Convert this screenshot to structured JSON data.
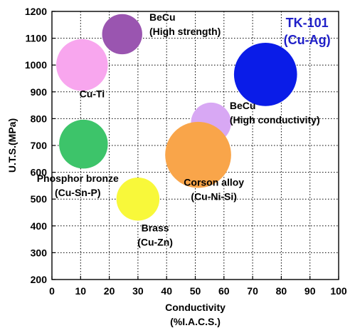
{
  "chart_data": {
    "type": "scatter",
    "style": "bubble",
    "xlabel_lines": [
      "Conductivity",
      "(%I.A.C.S.)"
    ],
    "ylabel": "U.T.S.(MPa)",
    "xlim": [
      0,
      100
    ],
    "ylim": [
      200,
      1200
    ],
    "xticks": [
      "0",
      "10",
      "20",
      "30",
      "40",
      "50",
      "60",
      "70",
      "80",
      "90",
      "100"
    ],
    "yticks": [
      "200",
      "300",
      "400",
      "500",
      "600",
      "700",
      "800",
      "900",
      "1000",
      "1100",
      "1200"
    ],
    "grid": true,
    "grid_style": "dotted",
    "headline_lines": [
      "TK-101",
      "(Cu-Ag)"
    ],
    "headline_color": "#1f1fc8",
    "bubbles": [
      {
        "label_lines": [
          "BeCu",
          "(High strength)"
        ],
        "x": 24.5,
        "y": 1115,
        "r": 7,
        "color": "#9a55b0"
      },
      {
        "label_lines": [
          "Cu-Ti"
        ],
        "x": 10.5,
        "y": 1000,
        "r": 9,
        "color": "#f8a6ee"
      },
      {
        "label_lines": [],
        "x": 74.5,
        "y": 965,
        "r": 11,
        "color": "#0a1ce8"
      },
      {
        "label_lines": [
          "BeCu",
          "(High conductivity)"
        ],
        "x": 55.5,
        "y": 785,
        "r": 7,
        "color": "#d8a8f4"
      },
      {
        "label_lines": [
          "Phosphor bronze",
          "(Cu-Sn-P)"
        ],
        "x": 11,
        "y": 705,
        "r": 8.5,
        "color": "#3dc46a"
      },
      {
        "label_lines": [
          "Corson alloy",
          "(Cu-Ni-Si)"
        ],
        "x": 51,
        "y": 665,
        "r": 11.5,
        "color": "#f9a54a"
      },
      {
        "label_lines": [
          "Brass",
          "(Cu-Zn)"
        ],
        "x": 30,
        "y": 500,
        "r": 7.5,
        "color": "#f8f83a"
      }
    ]
  }
}
